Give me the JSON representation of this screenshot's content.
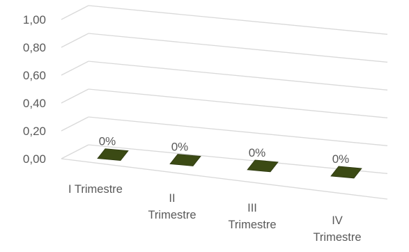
{
  "chart_data": {
    "type": "bar",
    "categories": [
      [
        "I Trimestre"
      ],
      [
        "II",
        "Trimestre"
      ],
      [
        "III",
        "Trimestre"
      ],
      [
        "IV",
        "Trimestre"
      ]
    ],
    "values": [
      0,
      0,
      0,
      0
    ],
    "data_labels": [
      "0%",
      "0%",
      "0%",
      "0%"
    ],
    "ylim": [
      0,
      1
    ],
    "y_ticks": [
      "0,00",
      "0,20",
      "0,40",
      "0,60",
      "0,80",
      "1,00"
    ],
    "grid": true,
    "style": "3d-perspective",
    "bar_color": "#3b4a14"
  }
}
